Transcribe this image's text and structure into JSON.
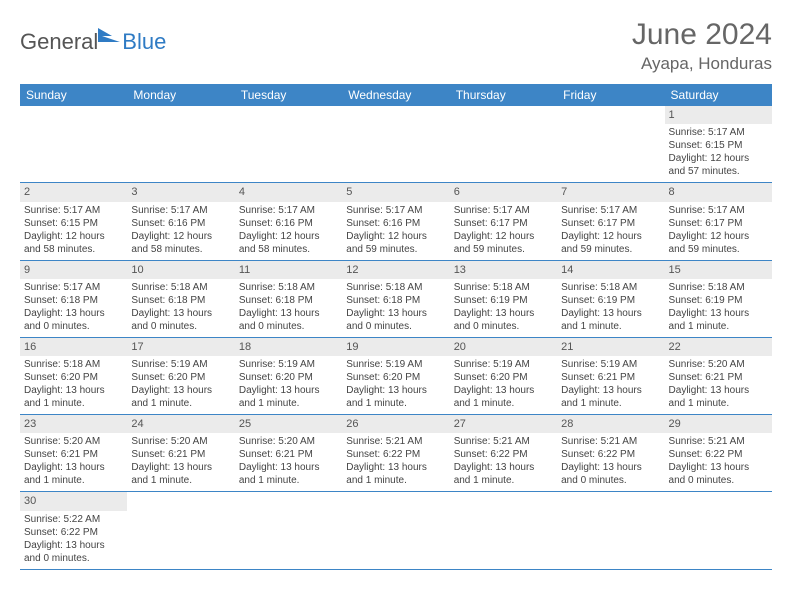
{
  "logo": {
    "general": "General",
    "blue": "Blue"
  },
  "title": "June 2024",
  "location": "Ayapa, Honduras",
  "headers": [
    "Sunday",
    "Monday",
    "Tuesday",
    "Wednesday",
    "Thursday",
    "Friday",
    "Saturday"
  ],
  "colors": {
    "header_bg": "#3d85c6",
    "header_fg": "#ffffff",
    "daynum_bg": "#ebebeb",
    "border": "#3d85c6",
    "title_color": "#666666",
    "logo_gray": "#555555",
    "logo_blue": "#2f7bc4"
  },
  "weeks": [
    [
      {
        "blank": true
      },
      {
        "blank": true
      },
      {
        "blank": true
      },
      {
        "blank": true
      },
      {
        "blank": true
      },
      {
        "blank": true
      },
      {
        "num": "1",
        "sunrise": "Sunrise: 5:17 AM",
        "sunset": "Sunset: 6:15 PM",
        "daylight1": "Daylight: 12 hours",
        "daylight2": "and 57 minutes."
      }
    ],
    [
      {
        "num": "2",
        "sunrise": "Sunrise: 5:17 AM",
        "sunset": "Sunset: 6:15 PM",
        "daylight1": "Daylight: 12 hours",
        "daylight2": "and 58 minutes."
      },
      {
        "num": "3",
        "sunrise": "Sunrise: 5:17 AM",
        "sunset": "Sunset: 6:16 PM",
        "daylight1": "Daylight: 12 hours",
        "daylight2": "and 58 minutes."
      },
      {
        "num": "4",
        "sunrise": "Sunrise: 5:17 AM",
        "sunset": "Sunset: 6:16 PM",
        "daylight1": "Daylight: 12 hours",
        "daylight2": "and 58 minutes."
      },
      {
        "num": "5",
        "sunrise": "Sunrise: 5:17 AM",
        "sunset": "Sunset: 6:16 PM",
        "daylight1": "Daylight: 12 hours",
        "daylight2": "and 59 minutes."
      },
      {
        "num": "6",
        "sunrise": "Sunrise: 5:17 AM",
        "sunset": "Sunset: 6:17 PM",
        "daylight1": "Daylight: 12 hours",
        "daylight2": "and 59 minutes."
      },
      {
        "num": "7",
        "sunrise": "Sunrise: 5:17 AM",
        "sunset": "Sunset: 6:17 PM",
        "daylight1": "Daylight: 12 hours",
        "daylight2": "and 59 minutes."
      },
      {
        "num": "8",
        "sunrise": "Sunrise: 5:17 AM",
        "sunset": "Sunset: 6:17 PM",
        "daylight1": "Daylight: 12 hours",
        "daylight2": "and 59 minutes."
      }
    ],
    [
      {
        "num": "9",
        "sunrise": "Sunrise: 5:17 AM",
        "sunset": "Sunset: 6:18 PM",
        "daylight1": "Daylight: 13 hours",
        "daylight2": "and 0 minutes."
      },
      {
        "num": "10",
        "sunrise": "Sunrise: 5:18 AM",
        "sunset": "Sunset: 6:18 PM",
        "daylight1": "Daylight: 13 hours",
        "daylight2": "and 0 minutes."
      },
      {
        "num": "11",
        "sunrise": "Sunrise: 5:18 AM",
        "sunset": "Sunset: 6:18 PM",
        "daylight1": "Daylight: 13 hours",
        "daylight2": "and 0 minutes."
      },
      {
        "num": "12",
        "sunrise": "Sunrise: 5:18 AM",
        "sunset": "Sunset: 6:18 PM",
        "daylight1": "Daylight: 13 hours",
        "daylight2": "and 0 minutes."
      },
      {
        "num": "13",
        "sunrise": "Sunrise: 5:18 AM",
        "sunset": "Sunset: 6:19 PM",
        "daylight1": "Daylight: 13 hours",
        "daylight2": "and 0 minutes."
      },
      {
        "num": "14",
        "sunrise": "Sunrise: 5:18 AM",
        "sunset": "Sunset: 6:19 PM",
        "daylight1": "Daylight: 13 hours",
        "daylight2": "and 1 minute."
      },
      {
        "num": "15",
        "sunrise": "Sunrise: 5:18 AM",
        "sunset": "Sunset: 6:19 PM",
        "daylight1": "Daylight: 13 hours",
        "daylight2": "and 1 minute."
      }
    ],
    [
      {
        "num": "16",
        "sunrise": "Sunrise: 5:18 AM",
        "sunset": "Sunset: 6:20 PM",
        "daylight1": "Daylight: 13 hours",
        "daylight2": "and 1 minute."
      },
      {
        "num": "17",
        "sunrise": "Sunrise: 5:19 AM",
        "sunset": "Sunset: 6:20 PM",
        "daylight1": "Daylight: 13 hours",
        "daylight2": "and 1 minute."
      },
      {
        "num": "18",
        "sunrise": "Sunrise: 5:19 AM",
        "sunset": "Sunset: 6:20 PM",
        "daylight1": "Daylight: 13 hours",
        "daylight2": "and 1 minute."
      },
      {
        "num": "19",
        "sunrise": "Sunrise: 5:19 AM",
        "sunset": "Sunset: 6:20 PM",
        "daylight1": "Daylight: 13 hours",
        "daylight2": "and 1 minute."
      },
      {
        "num": "20",
        "sunrise": "Sunrise: 5:19 AM",
        "sunset": "Sunset: 6:20 PM",
        "daylight1": "Daylight: 13 hours",
        "daylight2": "and 1 minute."
      },
      {
        "num": "21",
        "sunrise": "Sunrise: 5:19 AM",
        "sunset": "Sunset: 6:21 PM",
        "daylight1": "Daylight: 13 hours",
        "daylight2": "and 1 minute."
      },
      {
        "num": "22",
        "sunrise": "Sunrise: 5:20 AM",
        "sunset": "Sunset: 6:21 PM",
        "daylight1": "Daylight: 13 hours",
        "daylight2": "and 1 minute."
      }
    ],
    [
      {
        "num": "23",
        "sunrise": "Sunrise: 5:20 AM",
        "sunset": "Sunset: 6:21 PM",
        "daylight1": "Daylight: 13 hours",
        "daylight2": "and 1 minute."
      },
      {
        "num": "24",
        "sunrise": "Sunrise: 5:20 AM",
        "sunset": "Sunset: 6:21 PM",
        "daylight1": "Daylight: 13 hours",
        "daylight2": "and 1 minute."
      },
      {
        "num": "25",
        "sunrise": "Sunrise: 5:20 AM",
        "sunset": "Sunset: 6:21 PM",
        "daylight1": "Daylight: 13 hours",
        "daylight2": "and 1 minute."
      },
      {
        "num": "26",
        "sunrise": "Sunrise: 5:21 AM",
        "sunset": "Sunset: 6:22 PM",
        "daylight1": "Daylight: 13 hours",
        "daylight2": "and 1 minute."
      },
      {
        "num": "27",
        "sunrise": "Sunrise: 5:21 AM",
        "sunset": "Sunset: 6:22 PM",
        "daylight1": "Daylight: 13 hours",
        "daylight2": "and 1 minute."
      },
      {
        "num": "28",
        "sunrise": "Sunrise: 5:21 AM",
        "sunset": "Sunset: 6:22 PM",
        "daylight1": "Daylight: 13 hours",
        "daylight2": "and 0 minutes."
      },
      {
        "num": "29",
        "sunrise": "Sunrise: 5:21 AM",
        "sunset": "Sunset: 6:22 PM",
        "daylight1": "Daylight: 13 hours",
        "daylight2": "and 0 minutes."
      }
    ],
    [
      {
        "num": "30",
        "sunrise": "Sunrise: 5:22 AM",
        "sunset": "Sunset: 6:22 PM",
        "daylight1": "Daylight: 13 hours",
        "daylight2": "and 0 minutes."
      },
      {
        "blank": true
      },
      {
        "blank": true
      },
      {
        "blank": true
      },
      {
        "blank": true
      },
      {
        "blank": true
      },
      {
        "blank": true
      }
    ]
  ]
}
